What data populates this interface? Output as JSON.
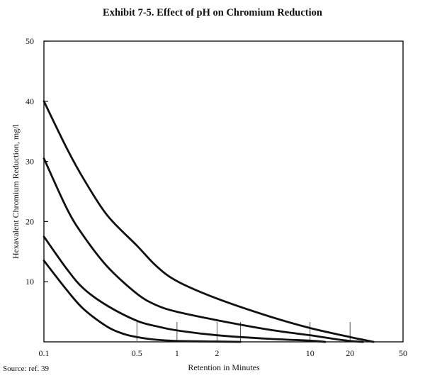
{
  "chart_data": {
    "type": "line",
    "title": "Exhibit 7-5. Effect of pH on Chromium Reduction",
    "xlabel": "Retention in Minutes",
    "ylabel": "Hexavalent Chromium Reduction, mg/l",
    "x_scale": "log",
    "xlim": [
      0.1,
      50
    ],
    "ylim": [
      0,
      50
    ],
    "x_ticks": [
      {
        "value": 0.1,
        "label": "0.1"
      },
      {
        "value": 0.5,
        "label": "0.5"
      },
      {
        "value": 1,
        "label": "1"
      },
      {
        "value": 2,
        "label": "2"
      },
      {
        "value": 10,
        "label": "10"
      },
      {
        "value": 20,
        "label": "20"
      },
      {
        "value": 50,
        "label": "50"
      }
    ],
    "y_ticks": [
      {
        "value": 10,
        "label": "10"
      },
      {
        "value": 20,
        "label": "20"
      },
      {
        "value": 30,
        "label": "30"
      },
      {
        "value": 40,
        "label": "40"
      },
      {
        "value": 50,
        "label": "50"
      }
    ],
    "grid": false,
    "series": [
      {
        "x": [
          0.1,
          0.15,
          0.2,
          0.3,
          0.5,
          0.7,
          1,
          2,
          5,
          10,
          20,
          30
        ],
        "y": [
          40,
          32,
          27,
          21,
          16,
          12.6,
          10.1,
          7.2,
          4.2,
          2.3,
          0.8,
          0
        ]
      },
      {
        "x": [
          0.1,
          0.15,
          0.2,
          0.3,
          0.5,
          0.7,
          1,
          2,
          5,
          10,
          15,
          20,
          25
        ],
        "y": [
          30.5,
          22,
          17.5,
          12.5,
          8,
          6.1,
          5,
          3.6,
          2,
          1.1,
          0.5,
          0.15,
          0
        ]
      },
      {
        "x": [
          0.1,
          0.15,
          0.2,
          0.3,
          0.5,
          0.7,
          1,
          2,
          5,
          10,
          13
        ],
        "y": [
          17.5,
          12,
          8.8,
          6,
          3.5,
          2.6,
          1.9,
          1.1,
          0.5,
          0.2,
          0
        ]
      },
      {
        "x": [
          0.1,
          0.15,
          0.2,
          0.3,
          0.4,
          0.5,
          0.7,
          1,
          2,
          3
        ],
        "y": [
          13.5,
          8.5,
          5.4,
          2.5,
          1.3,
          0.8,
          0.35,
          0.15,
          0.05,
          0
        ]
      }
    ],
    "markers_at_x": [
      0.5,
      1,
      2,
      3,
      10,
      20
    ]
  },
  "source": "Source: ref. 39"
}
